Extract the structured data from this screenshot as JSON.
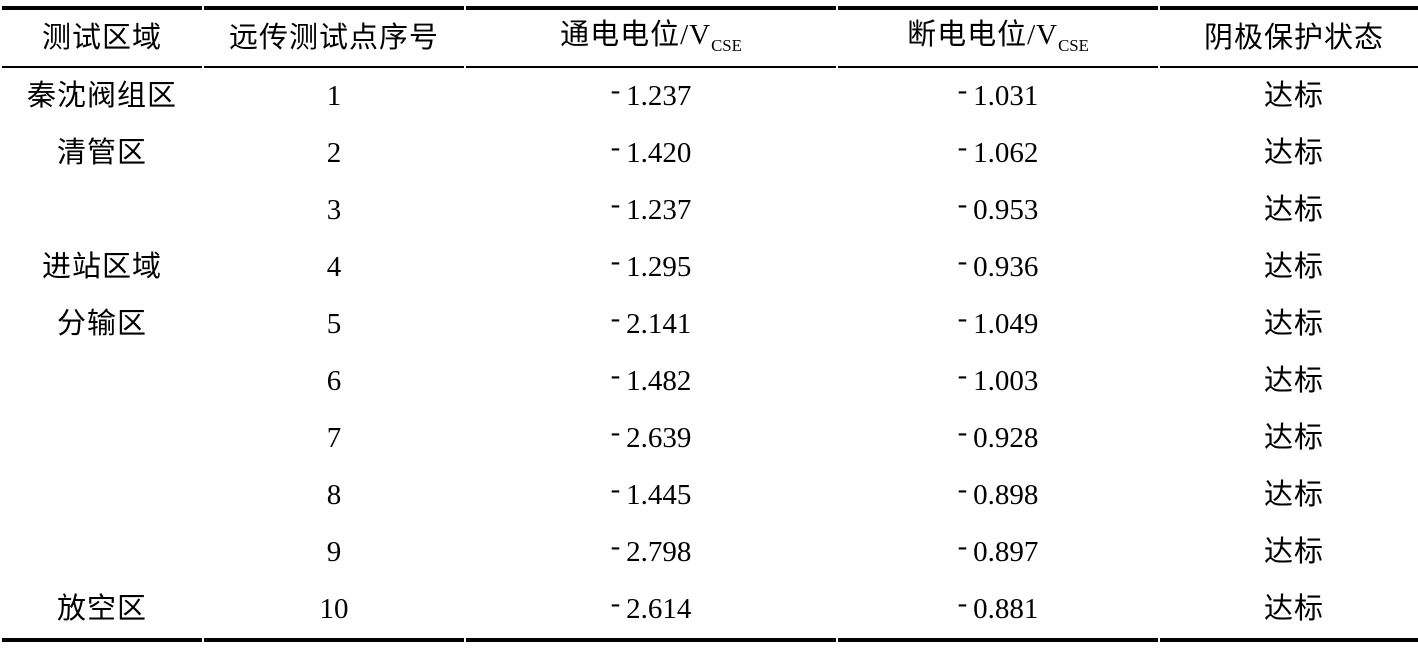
{
  "table": {
    "columns": [
      {
        "key": "area",
        "label": "测试区域"
      },
      {
        "key": "point",
        "label": "远传测试点序号"
      },
      {
        "key": "on_potential",
        "label_prefix": "通电电位/V",
        "label_sub": "CSE"
      },
      {
        "key": "off_potential",
        "label_prefix": "断电电位/V",
        "label_sub": "CSE"
      },
      {
        "key": "status",
        "label": "阴极保护状态"
      }
    ],
    "rows": [
      {
        "area": "秦沈阀组区",
        "point": "1",
        "on_potential": "-1.237",
        "off_potential": "-1.031",
        "status": "达标"
      },
      {
        "area": "清管区",
        "point": "2",
        "on_potential": "-1.420",
        "off_potential": "-1.062",
        "status": "达标"
      },
      {
        "area": "",
        "point": "3",
        "on_potential": "-1.237",
        "off_potential": "-0.953",
        "status": "达标"
      },
      {
        "area": "进站区域",
        "point": "4",
        "on_potential": "-1.295",
        "off_potential": "-0.936",
        "status": "达标"
      },
      {
        "area": "分输区",
        "point": "5",
        "on_potential": "-2.141",
        "off_potential": "-1.049",
        "status": "达标"
      },
      {
        "area": "",
        "point": "6",
        "on_potential": "-1.482",
        "off_potential": "-1.003",
        "status": "达标"
      },
      {
        "area": "",
        "point": "7",
        "on_potential": "-2.639",
        "off_potential": "-0.928",
        "status": "达标"
      },
      {
        "area": "",
        "point": "8",
        "on_potential": "-1.445",
        "off_potential": "-0.898",
        "status": "达标"
      },
      {
        "area": "",
        "point": "9",
        "on_potential": "-2.798",
        "off_potential": "-0.897",
        "status": "达标"
      },
      {
        "area": "放空区",
        "point": "10",
        "on_potential": "-2.614",
        "off_potential": "-0.881",
        "status": "达标"
      }
    ]
  },
  "chart_data": {
    "type": "table",
    "columns": [
      "测试区域",
      "远传测试点序号",
      "通电电位/V_CSE",
      "断电电位/V_CSE",
      "阴极保护状态"
    ],
    "rows": [
      [
        "秦沈阀组区",
        "1",
        "-1.237",
        "-1.031",
        "达标"
      ],
      [
        "清管区",
        "2",
        "-1.420",
        "-1.062",
        "达标"
      ],
      [
        "",
        "3",
        "-1.237",
        "-0.953",
        "达标"
      ],
      [
        "进站区域",
        "4",
        "-1.295",
        "-0.936",
        "达标"
      ],
      [
        "分输区",
        "5",
        "-2.141",
        "-1.049",
        "达标"
      ],
      [
        "",
        "6",
        "-1.482",
        "-1.003",
        "达标"
      ],
      [
        "",
        "7",
        "-2.639",
        "-0.928",
        "达标"
      ],
      [
        "",
        "8",
        "-1.445",
        "-0.898",
        "达标"
      ],
      [
        "",
        "9",
        "-2.798",
        "-0.897",
        "达标"
      ],
      [
        "放空区",
        "10",
        "-2.614",
        "-0.881",
        "达标"
      ]
    ]
  },
  "colors": {
    "text": "#000000",
    "background": "#ffffff",
    "rule": "#000000"
  }
}
